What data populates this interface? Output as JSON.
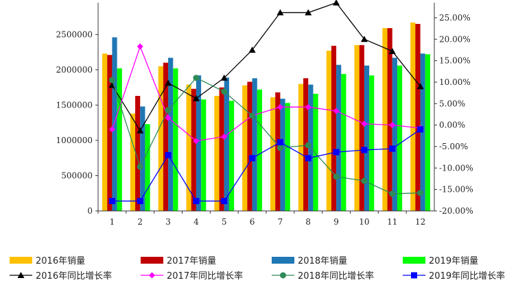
{
  "chart_data": {
    "type": "bar+line",
    "categories": [
      "1",
      "2",
      "3",
      "4",
      "5",
      "6",
      "7",
      "8",
      "9",
      "10",
      "11",
      "12"
    ],
    "left_axis": {
      "ylim": [
        0,
        2950000
      ],
      "ticks": [
        0,
        500000,
        1000000,
        1500000,
        2000000,
        2500000
      ],
      "tick_labels": [
        "0",
        "500000",
        "1000000",
        "1500000",
        "2000000",
        "2500000"
      ]
    },
    "right_axis": {
      "ylim": [
        -0.2,
        0.285
      ],
      "ticks": [
        -0.2,
        -0.15,
        -0.1,
        -0.05,
        0.0,
        0.05,
        0.1,
        0.15,
        0.2,
        0.25
      ],
      "tick_labels": [
        "-20.00%",
        "-15.00%",
        "-10.00%",
        "-5.00%",
        "0.00%",
        "5.00%",
        "10.00%",
        "15.00%",
        "20.00%",
        "25.00%"
      ]
    },
    "bar_series": [
      {
        "name": "2016年销量",
        "color": "#FFC000",
        "values": [
          2230000,
          1380000,
          2050000,
          1790000,
          1630000,
          1780000,
          1610000,
          1800000,
          2270000,
          2350000,
          2590000,
          2670000
        ]
      },
      {
        "name": "2017年销量",
        "color": "#C00000",
        "values": [
          2210000,
          1630000,
          2100000,
          1730000,
          1750000,
          1830000,
          1680000,
          1880000,
          2340000,
          2350000,
          2590000,
          2650000
        ]
      },
      {
        "name": "2018年销量",
        "color": "#1F77B4",
        "values": [
          2460000,
          1480000,
          2170000,
          1920000,
          1890000,
          1880000,
          1590000,
          1790000,
          2070000,
          2060000,
          2170000,
          2230000
        ]
      },
      {
        "name": "2019年销量",
        "color": "#00FF00",
        "values": [
          2020000,
          1230000,
          2020000,
          1580000,
          1560000,
          1720000,
          1530000,
          1660000,
          1940000,
          1920000,
          2060000,
          2220000
        ]
      }
    ],
    "line_series": [
      {
        "name": "2016年同比增长率",
        "color": "#000000",
        "marker": "triangle",
        "values": [
          0.093,
          -0.013,
          0.098,
          0.062,
          0.11,
          0.175,
          0.262,
          0.262,
          0.285,
          0.2,
          0.172,
          0.09
        ]
      },
      {
        "name": "2017年同比增长率",
        "color": "#FF00FF",
        "marker": "diamond",
        "values": [
          -0.01,
          0.183,
          0.017,
          -0.037,
          -0.027,
          0.022,
          0.042,
          0.042,
          0.033,
          0.003,
          0.0,
          -0.007
        ]
      },
      {
        "name": "2018年同比增长率",
        "color": "#2E8B57",
        "marker": "circle",
        "values": [
          0.105,
          -0.097,
          0.035,
          0.11,
          0.078,
          0.022,
          -0.053,
          -0.047,
          -0.12,
          -0.13,
          -0.16,
          -0.158
        ]
      },
      {
        "name": "2019年同比增长率",
        "color": "#0000FF",
        "marker": "square",
        "values": [
          -0.177,
          -0.177,
          -0.07,
          -0.177,
          -0.177,
          -0.077,
          -0.04,
          -0.077,
          -0.063,
          -0.058,
          -0.055,
          -0.01
        ]
      }
    ],
    "legend": {
      "position": "bottom",
      "rows": 2,
      "columns": 4
    }
  }
}
